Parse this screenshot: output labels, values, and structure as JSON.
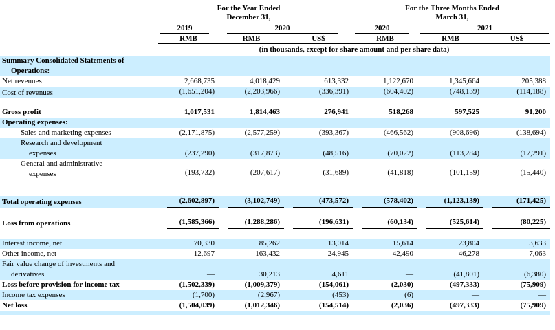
{
  "colors": {
    "row_highlight": "#cceeff",
    "rule_line": "#000000",
    "text": "#000000"
  },
  "table": {
    "header": {
      "year_group": {
        "line1": "For the Year Ended",
        "line2": "December 31,"
      },
      "quarter_group": {
        "line1": "For the Three Months Ended",
        "line2": "March 31,"
      },
      "years": [
        "2019",
        "2020",
        "2020",
        "2021"
      ],
      "currencies": [
        "RMB",
        "RMB",
        "US$",
        "RMB",
        "RMB",
        "US$"
      ],
      "note": "(in thousands, except for share amount and per share data)"
    },
    "rows": [
      {
        "label": "Summary Consolidated Statements of",
        "label2": "Operations:",
        "indent": 0,
        "indent2": 1,
        "bold": true,
        "bg": "blue",
        "values": [
          "",
          "",
          "",
          "",
          "",
          ""
        ]
      },
      {
        "label": "Net revenues",
        "indent": 0,
        "values": [
          "2,668,735",
          "4,018,429",
          "613,332",
          "1,122,670",
          "1,345,664",
          "205,388"
        ]
      },
      {
        "label": "Cost of revenues",
        "indent": 0,
        "bg": "blue",
        "rule": true,
        "values": [
          "(1,651,204)",
          "(2,203,966)",
          "(336,391)",
          "(604,402)",
          "(748,139)",
          "(114,188)"
        ]
      },
      {
        "spacer": 13
      },
      {
        "label": "Gross profit",
        "indent": 0,
        "bold": true,
        "values": [
          "1,017,531",
          "1,814,463",
          "276,941",
          "518,268",
          "597,525",
          "91,200"
        ]
      },
      {
        "label": "Operating expenses:",
        "indent": 0,
        "bold": true,
        "bg": "blue",
        "values": [
          "",
          "",
          "",
          "",
          "",
          ""
        ]
      },
      {
        "label": "Sales and marketing expenses",
        "indent": 2,
        "values": [
          "(2,171,875)",
          "(2,577,259)",
          "(393,367)",
          "(466,562)",
          "(908,696)",
          "(138,694)"
        ]
      },
      {
        "label": "Research and development",
        "label2": "expenses",
        "indent": 2,
        "indent2": 3,
        "bg": "blue",
        "values": [
          "(237,290)",
          "(317,873)",
          "(48,516)",
          "(70,022)",
          "(113,284)",
          "(17,291)"
        ]
      },
      {
        "label": "General and administrative",
        "label2": "expenses",
        "indent": 2,
        "indent2": 3,
        "rule": true,
        "values": [
          "(193,732)",
          "(207,617)",
          "(31,689)",
          "(41,818)",
          "(101,159)",
          "(15,440)"
        ]
      },
      {
        "spacer": 24
      },
      {
        "label": "Total operating expenses",
        "indent": 0,
        "bold": true,
        "bg": "blue",
        "rule": true,
        "values": [
          "(2,602,897)",
          "(3,102,749)",
          "(473,572)",
          "(578,402)",
          "(1,123,139)",
          "(171,425)"
        ]
      },
      {
        "spacer": 14
      },
      {
        "label": "Loss from operations",
        "indent": 0,
        "bold": true,
        "rule": true,
        "values": [
          "(1,585,366)",
          "(1,288,286)",
          "(196,631)",
          "(60,134)",
          "(525,614)",
          "(80,225)"
        ]
      },
      {
        "spacer": 14
      },
      {
        "label": "Interest income, net",
        "indent": 0,
        "bg": "blue",
        "values": [
          "70,330",
          "85,262",
          "13,014",
          "15,614",
          "23,804",
          "3,633"
        ]
      },
      {
        "label": "Other income, net",
        "indent": 0,
        "values": [
          "12,697",
          "163,432",
          "24,945",
          "42,490",
          "46,278",
          "7,063"
        ]
      },
      {
        "label": "Fair value change of investments and",
        "label2": "derivatives",
        "indent": 0,
        "indent2": 1,
        "bg": "blue",
        "values": [
          "—",
          "30,213",
          "4,611",
          "—",
          "(41,801)",
          "(6,380)"
        ]
      },
      {
        "label": "Loss before provision for income tax",
        "indent": 0,
        "bold": true,
        "values": [
          "(1,502,339)",
          "(1,009,379)",
          "(154,061)",
          "(2,030)",
          "(497,333)",
          "(75,909)"
        ]
      },
      {
        "label": "Income tax expenses",
        "indent": 0,
        "bg": "blue",
        "values": [
          "(1,700)",
          "(2,967)",
          "(453)",
          "(6)",
          "—",
          "—"
        ]
      },
      {
        "label": "Net loss",
        "indent": 0,
        "bold": true,
        "values": [
          "(1,504,039)",
          "(1,012,346)",
          "(154,514)",
          "(2,036)",
          "(497,333)",
          "(75,909)"
        ]
      },
      {
        "spacer": 6,
        "bg": "blue"
      }
    ]
  }
}
